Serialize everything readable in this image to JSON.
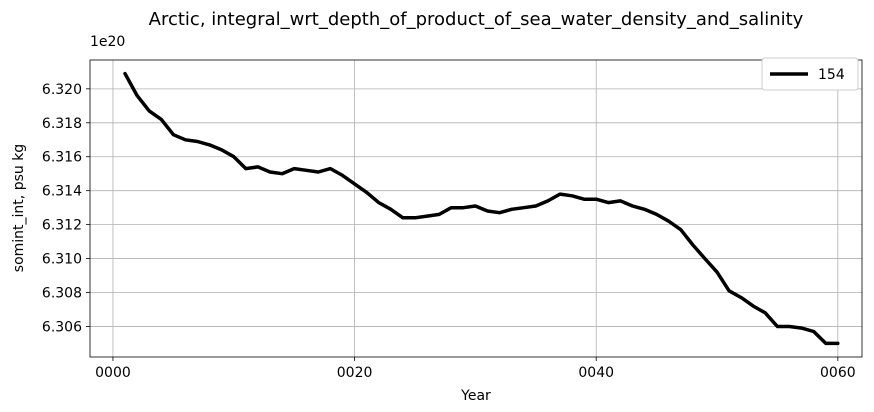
{
  "chart_data": {
    "type": "line",
    "title": "Arctic, integral_wrt_depth_of_product_of_sea_water_density_and_salinity",
    "xlabel": "Year",
    "ylabel": "somint_int, psu kg",
    "offset_text": "1e20",
    "y_scale_factor": 1e+20,
    "xlim": [
      -1.9,
      62.0
    ],
    "ylim": [
      6.3042,
      6.3217
    ],
    "x_ticks": [
      0,
      20,
      40,
      60
    ],
    "x_tick_labels": [
      "0000",
      "0020",
      "0040",
      "0060"
    ],
    "y_ticks": [
      6.306,
      6.308,
      6.31,
      6.312,
      6.314,
      6.316,
      6.318,
      6.32
    ],
    "y_tick_labels": [
      "6.306",
      "6.308",
      "6.310",
      "6.312",
      "6.314",
      "6.316",
      "6.318",
      "6.320"
    ],
    "grid": true,
    "legend_position": "upper-right",
    "series": [
      {
        "name": "154",
        "color": "#000000",
        "x": [
          1,
          2,
          3,
          4,
          5,
          6,
          7,
          8,
          9,
          10,
          11,
          12,
          13,
          14,
          15,
          16,
          17,
          18,
          19,
          20,
          21,
          22,
          23,
          24,
          25,
          26,
          27,
          28,
          29,
          30,
          31,
          32,
          33,
          34,
          35,
          36,
          37,
          38,
          39,
          40,
          41,
          42,
          43,
          44,
          45,
          46,
          47,
          48,
          49,
          50,
          51,
          52,
          53,
          54,
          55,
          56,
          57,
          58,
          59,
          60
        ],
        "values": [
          6.3209,
          6.3196,
          6.3187,
          6.3182,
          6.3173,
          6.317,
          6.3169,
          6.3167,
          6.3164,
          6.316,
          6.3153,
          6.3154,
          6.3151,
          6.315,
          6.3153,
          6.3152,
          6.3151,
          6.3153,
          6.3149,
          6.3144,
          6.3139,
          6.3133,
          6.3129,
          6.3124,
          6.3124,
          6.3125,
          6.3126,
          6.313,
          6.313,
          6.3131,
          6.3128,
          6.3127,
          6.3129,
          6.313,
          6.3131,
          6.3134,
          6.3138,
          6.3137,
          6.3135,
          6.3135,
          6.3133,
          6.3134,
          6.3131,
          6.3129,
          6.3126,
          6.3122,
          6.3117,
          6.3108,
          6.31,
          6.3092,
          6.3081,
          6.3077,
          6.3072,
          6.3068,
          6.306,
          6.306,
          6.3059,
          6.3057,
          6.305,
          6.305
        ]
      }
    ]
  }
}
